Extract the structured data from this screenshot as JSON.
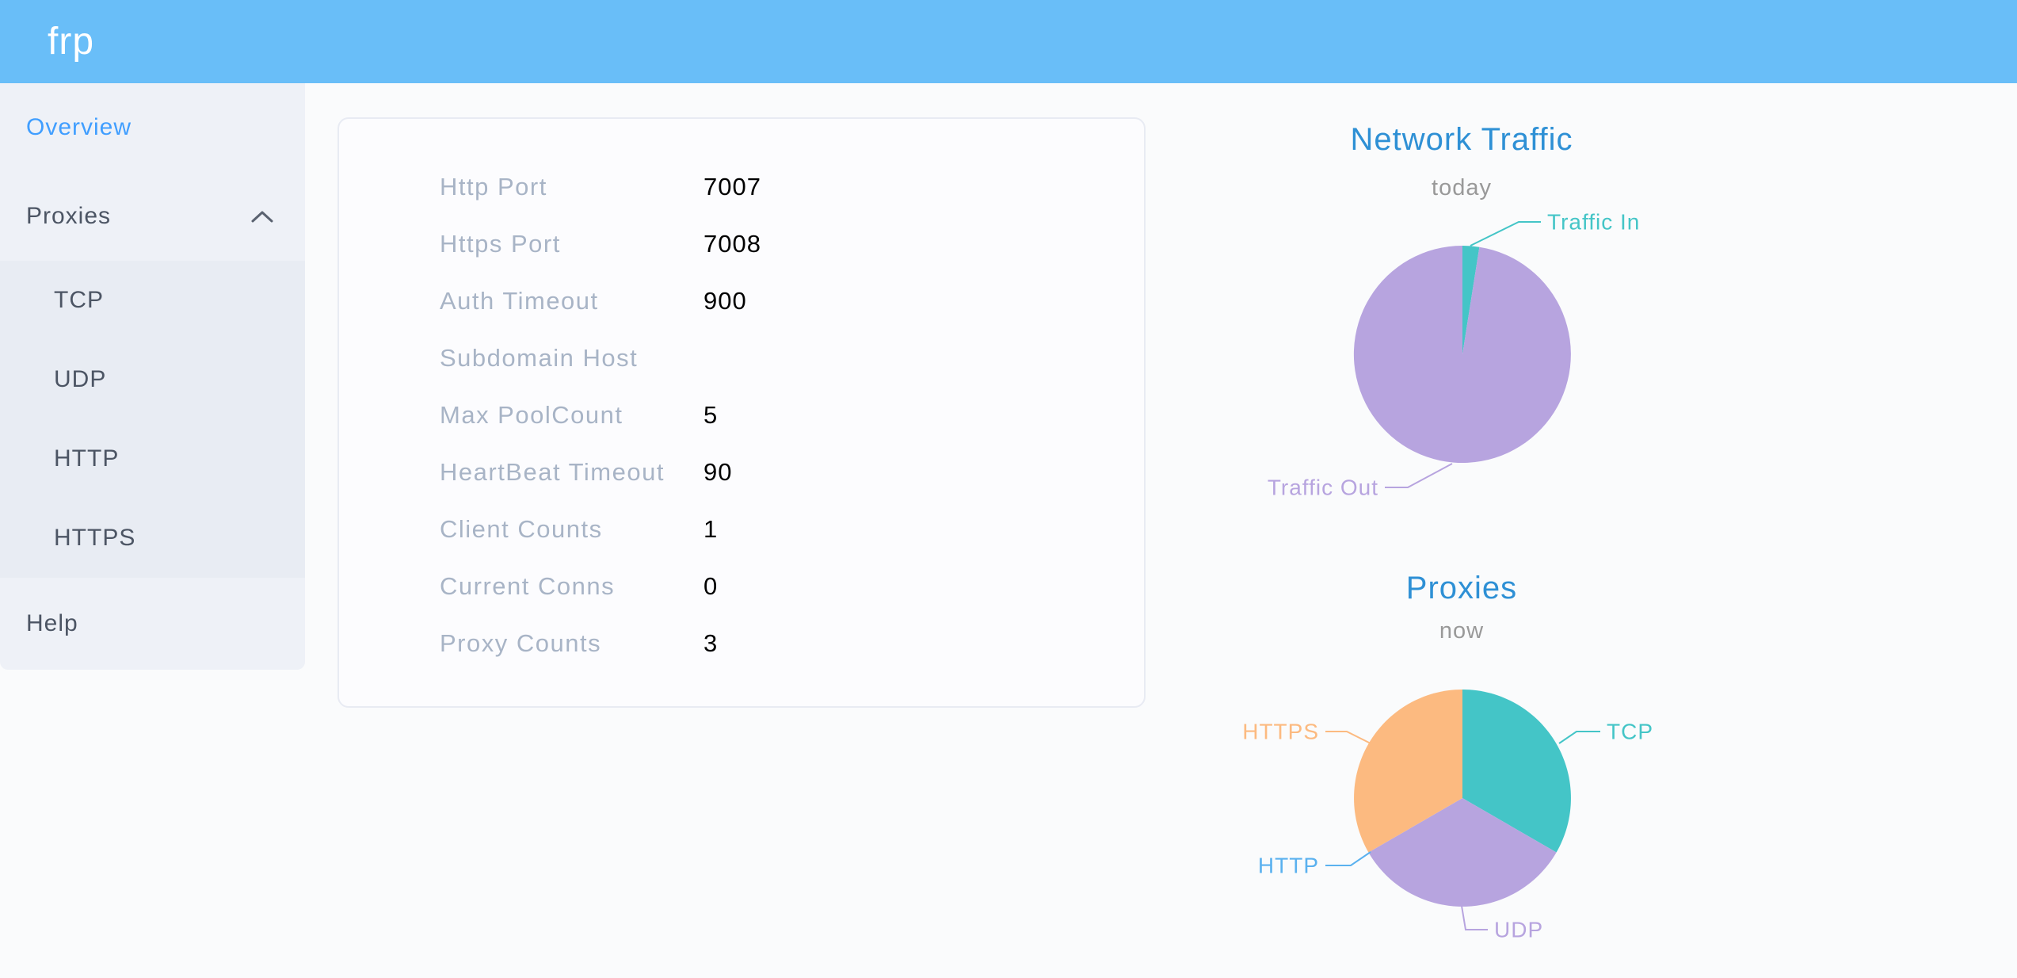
{
  "header": {
    "logo": "frp"
  },
  "colors": {
    "header_bg": "#69bef8",
    "active_menu": "#409eff",
    "chart_title": "#2e90d5",
    "chart_subtitle": "#999999"
  },
  "sidebar": {
    "items": [
      {
        "label": "Overview",
        "active": true
      },
      {
        "label": "Proxies",
        "expanded": true
      }
    ],
    "submenu": [
      {
        "label": "TCP"
      },
      {
        "label": "UDP"
      },
      {
        "label": "HTTP"
      },
      {
        "label": "HTTPS"
      }
    ],
    "help": {
      "label": "Help"
    }
  },
  "server_info": {
    "rows": [
      {
        "label": "Http Port",
        "value": "7007"
      },
      {
        "label": "Https Port",
        "value": "7008"
      },
      {
        "label": "Auth Timeout",
        "value": "900"
      },
      {
        "label": "Subdomain Host",
        "value": ""
      },
      {
        "label": "Max PoolCount",
        "value": "5"
      },
      {
        "label": "HeartBeat Timeout",
        "value": "90"
      },
      {
        "label": "Client Counts",
        "value": "1"
      },
      {
        "label": "Current Conns",
        "value": "0"
      },
      {
        "label": "Proxy Counts",
        "value": "3"
      }
    ]
  },
  "chart_data": [
    {
      "type": "pie",
      "title": "Network Traffic",
      "subtitle": "today",
      "legend_position": "none",
      "labels": "outside-with-leader-lines",
      "slices": [
        {
          "label": "Traffic In",
          "value_percent": 2.5,
          "color": "#44c5c7"
        },
        {
          "label": "Traffic Out",
          "value_percent": 97.5,
          "color": "#b7a4df"
        }
      ]
    },
    {
      "type": "pie",
      "title": "Proxies",
      "subtitle": "now",
      "legend_position": "none",
      "labels": "outside-with-leader-lines",
      "slices": [
        {
          "label": "TCP",
          "value": 1,
          "color": "#44c5c7"
        },
        {
          "label": "UDP",
          "value": 1,
          "color": "#b7a4df"
        },
        {
          "label": "HTTP",
          "value": 0,
          "color": "#5ab1ef"
        },
        {
          "label": "HTTPS",
          "value": 1,
          "color": "#fcba80"
        }
      ]
    }
  ]
}
